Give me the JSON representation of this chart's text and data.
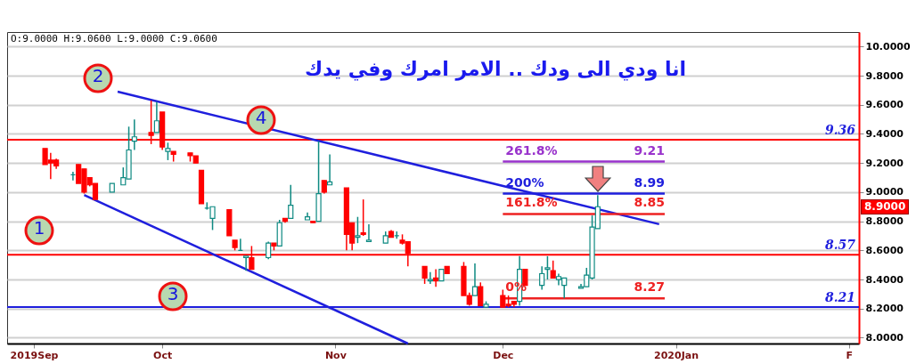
{
  "chart_data": {
    "type": "candlestick",
    "x": [
      "2019-09-10",
      "2019-09-11",
      "2019-09-12",
      "2019-09-15",
      "2019-09-16",
      "2019-09-17",
      "2019-09-18",
      "2019-09-19",
      "2019-09-22",
      "2019-09-24",
      "2019-09-25",
      "2019-09-26",
      "2019-09-29",
      "2019-09-30",
      "2019-10-01",
      "2019-10-02",
      "2019-10-03",
      "2019-10-06",
      "2019-10-07",
      "2019-10-08",
      "2019-10-09",
      "2019-10-10",
      "2019-10-13",
      "2019-10-14",
      "2019-10-15",
      "2019-10-16",
      "2019-10-17",
      "2019-10-20",
      "2019-10-21",
      "2019-10-22",
      "2019-10-23",
      "2019-10-24",
      "2019-10-27",
      "2019-10-28",
      "2019-10-29",
      "2019-10-30",
      "2019-10-31",
      "2019-11-03",
      "2019-11-04",
      "2019-11-05",
      "2019-11-06",
      "2019-11-07",
      "2019-11-10",
      "2019-11-11",
      "2019-11-12",
      "2019-11-13",
      "2019-11-14",
      "2019-11-17",
      "2019-11-18",
      "2019-11-19",
      "2019-11-20",
      "2019-11-21",
      "2019-11-24",
      "2019-11-25",
      "2019-11-26",
      "2019-11-27",
      "2019-11-28",
      "2019-12-01",
      "2019-12-02",
      "2019-12-03",
      "2019-12-04",
      "2019-12-05",
      "2019-12-08",
      "2019-12-09",
      "2019-12-10",
      "2019-12-11",
      "2019-12-12",
      "2019-12-15",
      "2019-12-16",
      "2019-12-17",
      "2019-12-18"
    ],
    "ohlc": [
      [
        9.3,
        9.3,
        9.19,
        9.19
      ],
      [
        9.22,
        9.27,
        9.09,
        9.2
      ],
      [
        9.22,
        9.23,
        9.16,
        9.18
      ],
      [
        9.12,
        9.14,
        9.08,
        9.12
      ],
      [
        9.19,
        9.19,
        9.06,
        9.06
      ],
      [
        9.16,
        9.16,
        8.99,
        9.0
      ],
      [
        9.1,
        9.1,
        9.04,
        9.05
      ],
      [
        9.06,
        9.06,
        8.95,
        8.95
      ],
      [
        9.0,
        9.06,
        9.0,
        9.06
      ],
      [
        9.05,
        9.17,
        9.05,
        9.1
      ],
      [
        9.09,
        9.45,
        9.09,
        9.29
      ],
      [
        9.35,
        9.5,
        9.29,
        9.38
      ],
      [
        9.41,
        9.63,
        9.33,
        9.39
      ],
      [
        9.41,
        9.62,
        9.41,
        9.49
      ],
      [
        9.55,
        9.55,
        9.29,
        9.31
      ],
      [
        9.28,
        9.34,
        9.22,
        9.3
      ],
      [
        9.28,
        9.28,
        9.21,
        9.26
      ],
      [
        9.27,
        9.27,
        9.21,
        9.25
      ],
      [
        9.25,
        9.25,
        9.2,
        9.2
      ],
      [
        9.15,
        9.15,
        8.92,
        8.92
      ],
      [
        8.89,
        8.93,
        8.88,
        8.89
      ],
      [
        8.82,
        8.9,
        8.74,
        8.9
      ],
      [
        8.88,
        8.88,
        8.7,
        8.7
      ],
      [
        8.67,
        8.67,
        8.6,
        8.62
      ],
      [
        8.6,
        8.68,
        8.6,
        8.6
      ],
      [
        8.55,
        8.56,
        8.46,
        8.56
      ],
      [
        8.55,
        8.63,
        8.47,
        8.47
      ],
      [
        8.55,
        8.66,
        8.54,
        8.65
      ],
      [
        8.65,
        8.65,
        8.6,
        8.63
      ],
      [
        8.63,
        8.81,
        8.63,
        8.79
      ],
      [
        8.82,
        8.82,
        8.79,
        8.8
      ],
      [
        8.82,
        9.05,
        8.82,
        8.91
      ],
      [
        8.81,
        8.86,
        8.81,
        8.83
      ],
      [
        8.8,
        8.8,
        8.79,
        8.79
      ],
      [
        8.8,
        9.35,
        8.8,
        8.99
      ],
      [
        9.08,
        9.08,
        8.99,
        9.0
      ],
      [
        9.05,
        9.26,
        9.05,
        9.07
      ],
      [
        9.03,
        9.03,
        8.6,
        8.71
      ],
      [
        8.79,
        8.79,
        8.6,
        8.65
      ],
      [
        8.69,
        8.83,
        8.65,
        8.7
      ],
      [
        8.72,
        8.95,
        8.7,
        8.71
      ],
      [
        8.66,
        8.78,
        8.66,
        8.67
      ],
      [
        8.65,
        8.73,
        8.65,
        8.7
      ],
      [
        8.73,
        8.74,
        8.69,
        8.69
      ],
      [
        8.7,
        8.73,
        8.68,
        8.7
      ],
      [
        8.67,
        8.71,
        8.64,
        8.65
      ],
      [
        8.66,
        8.66,
        8.49,
        8.58
      ],
      [
        8.49,
        8.49,
        8.37,
        8.41
      ],
      [
        8.39,
        8.45,
        8.37,
        8.4
      ],
      [
        8.41,
        8.47,
        8.35,
        8.39
      ],
      [
        8.39,
        8.47,
        8.39,
        8.47
      ],
      [
        8.49,
        8.49,
        8.44,
        8.44
      ],
      [
        8.49,
        8.52,
        8.29,
        8.29
      ],
      [
        8.29,
        8.31,
        8.22,
        8.23
      ],
      [
        8.29,
        8.51,
        8.29,
        8.35
      ],
      [
        8.35,
        8.38,
        8.22,
        8.22
      ],
      [
        8.21,
        8.25,
        8.21,
        8.23
      ],
      [
        8.29,
        8.33,
        8.21,
        8.21
      ],
      [
        8.23,
        8.29,
        8.21,
        8.22
      ],
      [
        8.25,
        8.25,
        8.21,
        8.23
      ],
      [
        8.25,
        8.56,
        8.22,
        8.47
      ],
      [
        8.47,
        8.47,
        8.36,
        8.36
      ],
      [
        8.36,
        8.49,
        8.33,
        8.44
      ],
      [
        8.47,
        8.56,
        8.4,
        8.48
      ],
      [
        8.46,
        8.53,
        8.41,
        8.41
      ],
      [
        8.4,
        8.44,
        8.36,
        8.42
      ],
      [
        8.36,
        8.41,
        8.27,
        8.41
      ],
      [
        8.34,
        8.37,
        8.34,
        8.35
      ],
      [
        8.35,
        8.48,
        8.35,
        8.43
      ],
      [
        8.41,
        8.84,
        8.4,
        8.76
      ],
      [
        8.75,
        8.98,
        8.75,
        8.9
      ]
    ],
    "xlim": [
      "2019-09-04",
      "2020-02-02"
    ],
    "xticks": [
      {
        "value": "2019-09-08",
        "label": "2019Sep"
      },
      {
        "value": "2019-10-01",
        "label": "Oct"
      },
      {
        "value": "2019-11-01",
        "label": "Nov"
      },
      {
        "value": "2019-12-01",
        "label": "Dec"
      },
      {
        "value": "2020-01-01",
        "label": "2020Jan"
      },
      {
        "value": "2020-02-01",
        "label": "F"
      }
    ],
    "ylim": [
      7.96,
      10.1
    ],
    "yticks": [
      {
        "value": 8,
        "label": "8.0000"
      },
      {
        "value": 8.2,
        "label": "8.2000"
      },
      {
        "value": 8.4,
        "label": "8.4000"
      },
      {
        "value": 8.6,
        "label": "8.6000"
      },
      {
        "value": 8.8,
        "label": "8.8000"
      },
      {
        "value": 9,
        "label": "9.0000"
      },
      {
        "value": 9.2,
        "label": "9.2000"
      },
      {
        "value": 9.4,
        "label": "9.4000"
      },
      {
        "value": 9.6,
        "label": "9.6000"
      },
      {
        "value": 9.8,
        "label": "9.8000"
      },
      {
        "value": 10,
        "label": "10.0000"
      }
    ],
    "grid": "y",
    "series": [
      {
        "type": "line",
        "color": "#1f1fdd",
        "x": [
          "2019-09-23",
          "2019-12-29"
        ],
        "values": [
          9.69,
          8.78
        ]
      },
      {
        "type": "line",
        "color": "#1f1fdd",
        "x": [
          "2019-09-17",
          "2019-11-14"
        ],
        "values": [
          8.98,
          7.96
        ]
      },
      {
        "type": "line",
        "name": "261.8%",
        "color": "#9933cc",
        "x": [
          "2019-12-01",
          "2019-12-30"
        ],
        "values": [
          9.21,
          9.21
        ],
        "value_labels": [
          null,
          "9.21"
        ]
      },
      {
        "type": "line",
        "name": "200%",
        "color": "#1f1fdd",
        "x": [
          "2019-12-01",
          "2019-12-30"
        ],
        "values": [
          8.99,
          8.99
        ],
        "value_labels": [
          null,
          "8.99"
        ]
      },
      {
        "type": "line",
        "name": "161.8%",
        "color": "#ee2222",
        "x": [
          "2019-12-01",
          "2019-12-30"
        ],
        "values": [
          8.85,
          8.85
        ],
        "value_labels": [
          null,
          "8.85"
        ]
      },
      {
        "type": "line",
        "name": "0%",
        "color": "#ee2222",
        "x": [
          "2019-12-01",
          "2019-12-30"
        ],
        "values": [
          8.27,
          8.27
        ],
        "value_labels": [
          null,
          "8.27"
        ]
      }
    ],
    "ref_lines": [
      {
        "axis": "y",
        "value": 9.36,
        "label": "9.36",
        "color": "#ff0000"
      },
      {
        "axis": "y",
        "value": 8.57,
        "label": "8.57",
        "color": "#ff0000"
      },
      {
        "axis": "y",
        "value": 8.21,
        "label": "8.21",
        "color": "#1f1fdd"
      }
    ],
    "annotations": [
      "O:9.0000  H:9.0600  L:9.0000  C:9.0600",
      "انا ودي الى ودك .. الامر امرك وفي يدك",
      "1",
      "2",
      "3",
      "4",
      "8.9000"
    ]
  }
}
